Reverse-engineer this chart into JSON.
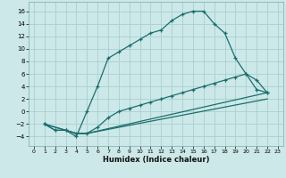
{
  "xlabel": "Humidex (Indice chaleur)",
  "bg_color": "#cce8e8",
  "grid_color": "#aacfcf",
  "line_color": "#1a6e6e",
  "xlim": [
    -0.5,
    23.5
  ],
  "ylim": [
    -5.5,
    17.5
  ],
  "xticks": [
    0,
    1,
    2,
    3,
    4,
    5,
    6,
    7,
    8,
    9,
    10,
    11,
    12,
    13,
    14,
    15,
    16,
    17,
    18,
    19,
    20,
    21,
    22,
    23
  ],
  "yticks": [
    -4,
    -2,
    0,
    2,
    4,
    6,
    8,
    10,
    12,
    14,
    16
  ],
  "line1_x": [
    1,
    2,
    3,
    4,
    5,
    6,
    7,
    8,
    9,
    10,
    11,
    12,
    13,
    14,
    15,
    16,
    17,
    18,
    19,
    20,
    21,
    22
  ],
  "line1_y": [
    -2,
    -3,
    -3,
    -4,
    0,
    4,
    8.5,
    9.5,
    10.5,
    11.5,
    12.5,
    13.0,
    14.5,
    15.5,
    16.0,
    16.0,
    14.0,
    12.5,
    8.5,
    6.0,
    5.0,
    3.0
  ],
  "line2_x": [
    1,
    2,
    3,
    4,
    5,
    6,
    7,
    8,
    9,
    10,
    11,
    12,
    13,
    14,
    15,
    16,
    17,
    18,
    19,
    20,
    21,
    22
  ],
  "line2_y": [
    -2,
    -3,
    -3,
    -3.5,
    -3.5,
    -2.5,
    -1.0,
    0.0,
    0.5,
    1.0,
    1.5,
    2.0,
    2.5,
    3.0,
    3.5,
    4.0,
    4.5,
    5.0,
    5.5,
    6.0,
    3.5,
    3.0
  ],
  "line3_x": [
    1,
    4,
    5,
    22
  ],
  "line3_y": [
    -2,
    -3.5,
    -3.5,
    3.0
  ],
  "line4_x": [
    1,
    4,
    5,
    22
  ],
  "line4_y": [
    -2,
    -3.5,
    -3.5,
    2.0
  ]
}
